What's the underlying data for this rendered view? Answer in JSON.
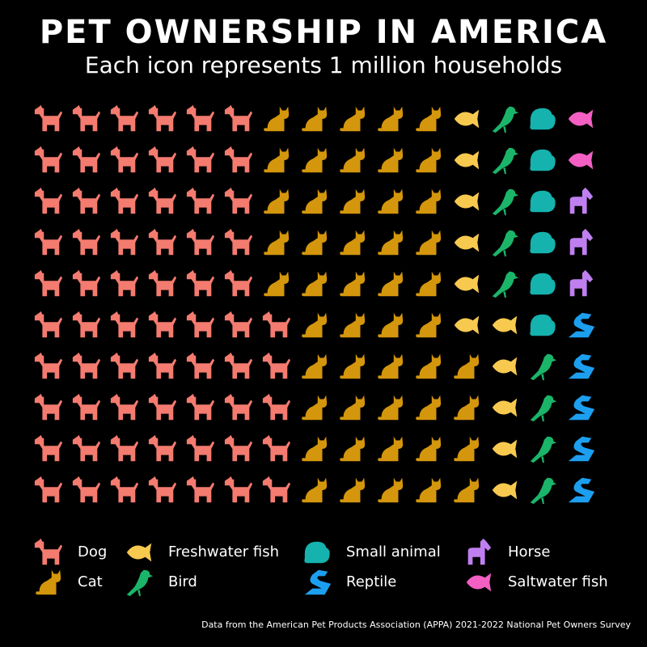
{
  "chart_data": {
    "type": "pictogram",
    "title": "PET OWNERSHIP IN AMERICA",
    "subtitle": "Each icon represents 1 million households",
    "note": "Data from the American Pet Products Association (APPA) 2021-2022 National Pet Owners Survey",
    "categories": [
      "Dog",
      "Cat",
      "Freshwater fish",
      "Bird",
      "Small animal",
      "Reptile",
      "Horse",
      "Saltwater fish"
    ],
    "values": [
      65,
      49,
      11,
      9,
      6,
      5,
      3,
      2
    ],
    "colors": [
      "#f47b6f",
      "#d4960c",
      "#f7c94f",
      "#1bb56a",
      "#15b2ae",
      "#1d9ff0",
      "#c07ff0",
      "#f35fc2"
    ]
  }
}
